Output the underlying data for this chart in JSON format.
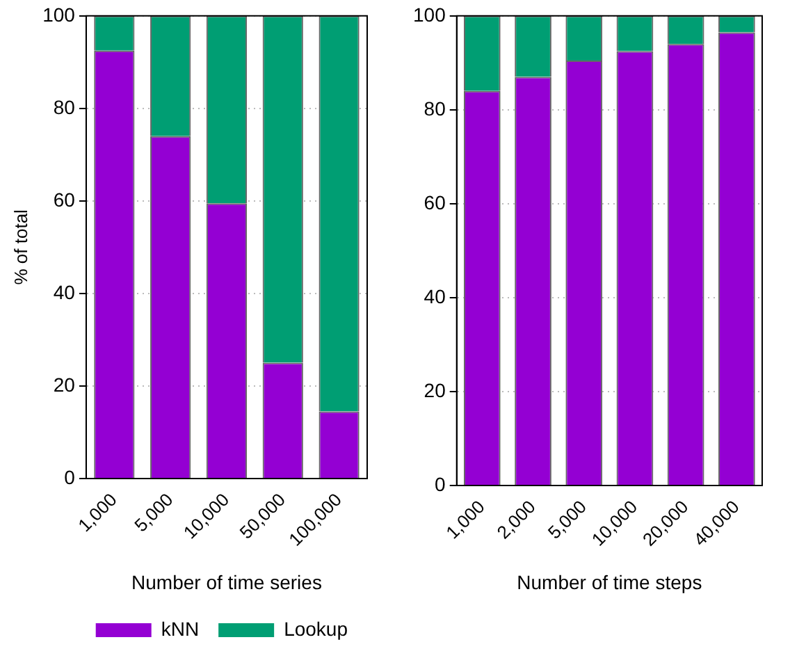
{
  "chart_data": [
    {
      "type": "bar",
      "stacked": true,
      "ylabel": "% of total",
      "xlabel": "Number of time series",
      "categories": [
        "1,000",
        "5,000",
        "10,000",
        "50,000",
        "100,000"
      ],
      "ylim": [
        0,
        100
      ],
      "yticks": [
        0,
        20,
        40,
        60,
        80,
        100
      ],
      "grid": "y",
      "legend": "bottom",
      "series": [
        {
          "name": "kNN",
          "color": "#9400d3",
          "values": [
            92.5,
            74,
            59.5,
            25,
            14.5
          ]
        },
        {
          "name": "Lookup",
          "color": "#009e73",
          "values": [
            7.5,
            26,
            40.5,
            75,
            85.5
          ]
        }
      ]
    },
    {
      "type": "bar",
      "stacked": true,
      "xlabel": "Number of time steps",
      "categories": [
        "1,000",
        "2,000",
        "5,000",
        "10,000",
        "20,000",
        "40,000"
      ],
      "ylim": [
        0,
        100
      ],
      "yticks": [
        0,
        20,
        40,
        60,
        80,
        100
      ],
      "grid": "y",
      "series": [
        {
          "color": "#9400d3",
          "values": [
            84,
            87,
            90.5,
            92.5,
            94,
            96.5
          ]
        },
        {
          "color": "#009e73",
          "values": [
            16,
            13,
            9.5,
            7.5,
            6,
            3.5
          ]
        }
      ]
    }
  ]
}
